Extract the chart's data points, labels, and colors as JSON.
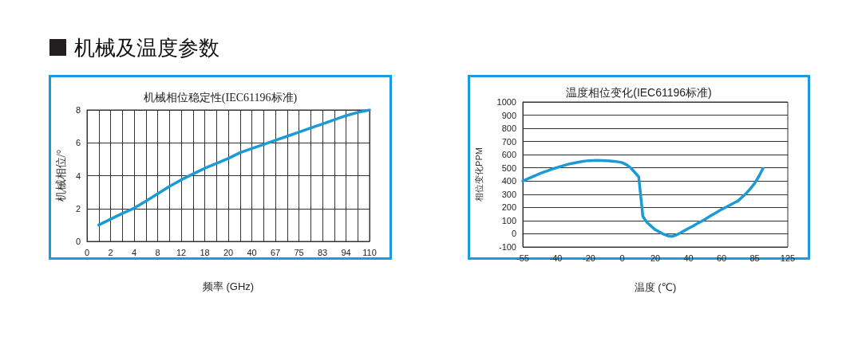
{
  "chart_data": [
    {
      "type": "other",
      "title": "机械及温度参数"
    },
    {
      "type": "line",
      "title": "机械相位稳定性(IEC61196标准)",
      "xlabel": "频率 (GHz)",
      "ylabel": "机械相位/°",
      "color": "#1b9ad6",
      "grid": true,
      "categories": [
        "0",
        null,
        "2",
        null,
        "4",
        null,
        "8",
        null,
        "12",
        null,
        "18",
        null,
        "20",
        null,
        "40",
        null,
        "67",
        null,
        "75",
        null,
        "83",
        null,
        "94",
        null,
        "110"
      ],
      "values": [
        null,
        1.0,
        1.35,
        1.7,
        2.02,
        2.45,
        2.9,
        3.35,
        3.75,
        4.1,
        4.45,
        4.75,
        5.05,
        5.4,
        5.65,
        5.9,
        6.15,
        6.4,
        6.65,
        6.9,
        7.15,
        7.4,
        7.65,
        7.85,
        8.0
      ],
      "ylim": [
        0,
        8
      ],
      "yticks": [
        0,
        2,
        4,
        6,
        8
      ]
    },
    {
      "type": "line",
      "title": "温度相位变化(IEC61196标准)",
      "xlabel": "温度 (℃)",
      "ylabel": "相位变化PPM",
      "color": "#1b9ad6",
      "grid": "y",
      "categories": [
        "-55",
        null,
        null,
        null,
        null,
        null,
        null,
        null,
        "-40",
        null,
        null,
        null,
        null,
        null,
        null,
        null,
        "-20",
        null,
        null,
        null,
        null,
        null,
        null,
        null,
        "0",
        null,
        null,
        null,
        null,
        null,
        null,
        null,
        "20",
        null,
        null,
        null,
        null,
        null,
        null,
        null,
        "40",
        null,
        null,
        null,
        null,
        null,
        null,
        null,
        "60",
        null,
        null,
        null,
        null,
        null,
        null,
        null,
        "85",
        null,
        null,
        null,
        null,
        null,
        null,
        null,
        "125"
      ],
      "values": [
        400,
        414,
        428,
        441,
        455,
        467,
        478,
        490,
        500,
        510,
        519,
        528,
        535,
        541,
        547,
        552,
        555,
        556,
        557,
        556,
        555,
        553,
        550,
        546,
        540,
        525,
        502,
        468,
        432,
        133,
        86,
        58,
        31,
        14,
        -3,
        -15,
        -20,
        -10,
        6,
        23,
        40,
        57,
        75,
        92,
        110,
        129,
        148,
        166,
        185,
        201,
        217,
        234,
        250,
        279,
        308,
        343,
        383,
        435,
        495,
        null,
        null,
        null,
        null,
        null,
        null
      ],
      "ylim": [
        -100,
        1000
      ],
      "yticks": [
        -100,
        0,
        100,
        200,
        300,
        400,
        500,
        600,
        700,
        800,
        900,
        1000
      ]
    }
  ]
}
